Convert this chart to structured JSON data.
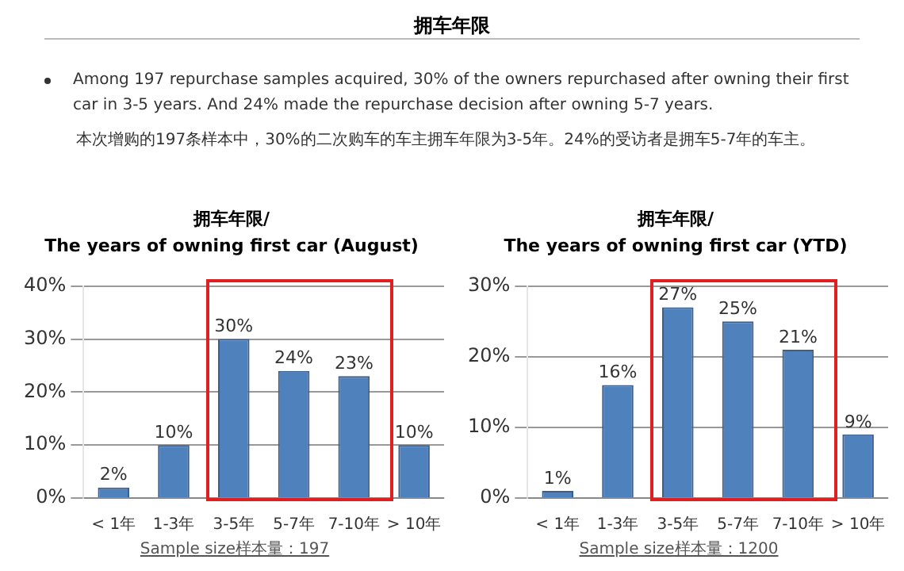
{
  "chart_data": [
    {
      "type": "other",
      "title": "拥车年限",
      "annotations": [
        "Among 197 repurchase samples acquired, 30% of the owners repurchased after owning their first car in 3-5 years. And 24% made the repurchase decision after owning 5-7 years.",
        "本次增购的197条样本中，30%的二次购车的车主拥车年限为3-5年。24%的受访者是拥车5-7年的车主。"
      ]
    },
    {
      "type": "bar",
      "title": "拥车年限/",
      "subtitle": "The years of owning first car (August)",
      "categories": [
        "< 1年",
        "1-3年",
        "3-5年",
        "5-7年",
        "7-10年",
        "> 10年"
      ],
      "values": [
        2,
        10,
        30,
        24,
        23,
        10
      ],
      "value_labels": [
        "2%",
        "10%",
        "30%",
        "24%",
        "23%",
        "10%"
      ],
      "color": "#4f81bd",
      "ylim": [
        0,
        40
      ],
      "yticks": [
        {
          "value": 0,
          "label": "0%"
        },
        {
          "value": 10,
          "label": "10%"
        },
        {
          "value": 20,
          "label": "20%"
        },
        {
          "value": 30,
          "label": "30%"
        },
        {
          "value": 40,
          "label": "40%"
        }
      ],
      "grid": "y",
      "legend": false,
      "annotations": [
        "Sample size样本量：197"
      ]
    },
    {
      "type": "bar",
      "title": "拥车年限/",
      "subtitle": "The years of owning first car (YTD)",
      "categories": [
        "< 1年",
        "1-3年",
        "3-5年",
        "5-7年",
        "7-10年",
        "> 10年"
      ],
      "values": [
        1,
        16,
        27,
        25,
        21,
        9
      ],
      "value_labels": [
        "1%",
        "16%",
        "27%",
        "25%",
        "21%",
        "9%"
      ],
      "color": "#4f81bd",
      "ylim": [
        0,
        30
      ],
      "yticks": [
        {
          "value": 0,
          "label": "0%"
        },
        {
          "value": 10,
          "label": "10%"
        },
        {
          "value": 20,
          "label": "20%"
        },
        {
          "value": 30,
          "label": "30%"
        }
      ],
      "grid": "y",
      "legend": false,
      "annotations": [
        "Sample size样本量：1200"
      ]
    }
  ]
}
